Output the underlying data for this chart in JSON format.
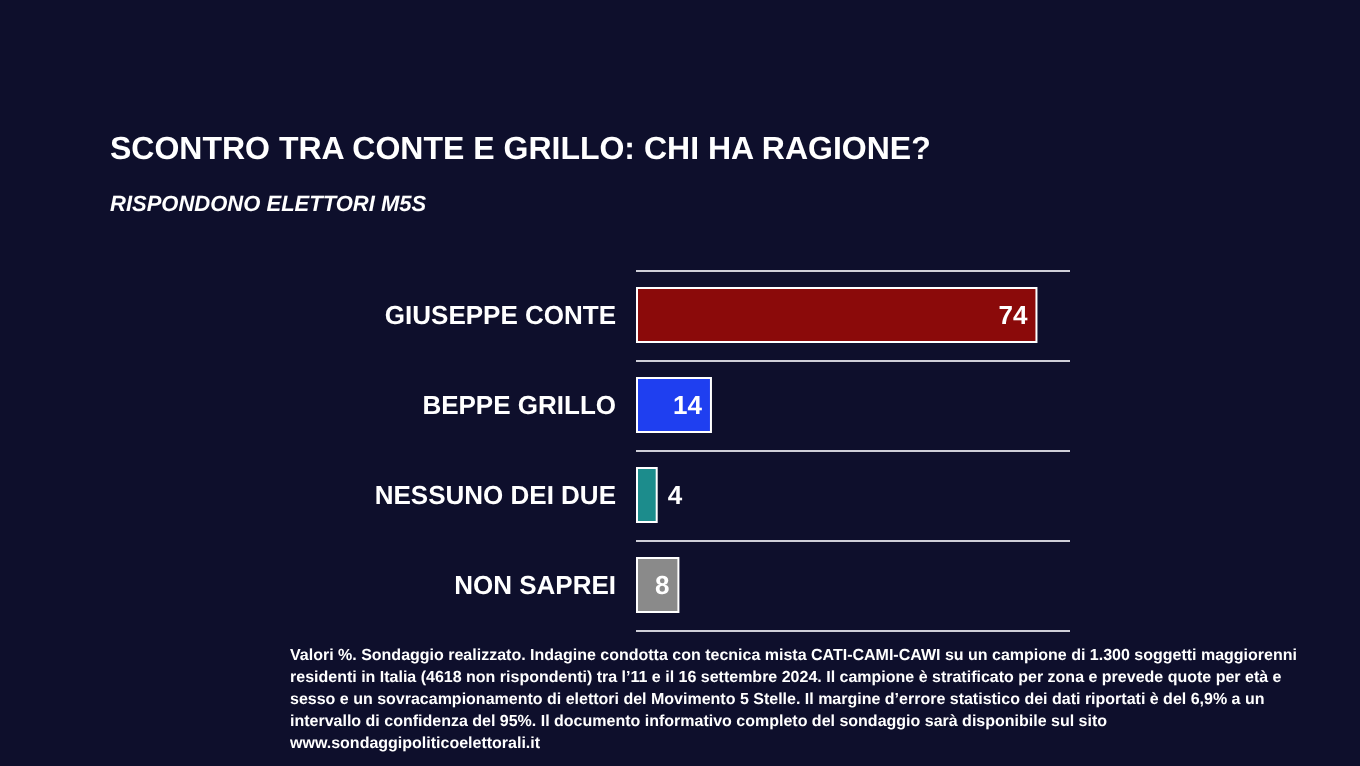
{
  "chart_data": {
    "type": "bar",
    "orientation": "horizontal",
    "title": "SCONTRO TRA CONTE E GRILLO: CHI HA RAGIONE?",
    "subtitle": "RISPONDONO ELETTORI M5S",
    "categories": [
      "GIUSEPPE CONTE",
      "BEPPE GRILLO",
      "NESSUNO DEI DUE",
      "NON SAPREI"
    ],
    "values": [
      74,
      14,
      4,
      8
    ],
    "colors": [
      "#8b0a0a",
      "#1f3ff0",
      "#1c8c8c",
      "#8a8a8a"
    ],
    "data_labels": true,
    "grid": "y",
    "annotations": [
      "Valori %. Sondaggio realizzato. Indagine condotta con tecnica mista CATI-CAMI-CAWI su un campione di 1.300 soggetti maggiorenni residenti in Italia (4618 non rispondenti) tra l’11 e il 16 settembre 2024. Il campione è stratificato per zona e prevede quote per età e sesso e un sovracampionamento di elettori del Movimento 5 Stelle. Il margine d’errore statistico dei dati riportati è del 6,9% a un intervallo di confidenza del 95%. Il documento informativo completo del sondaggio sarà disponibile sul sito www.sondaggipoliticoelettorali.it"
    ]
  }
}
